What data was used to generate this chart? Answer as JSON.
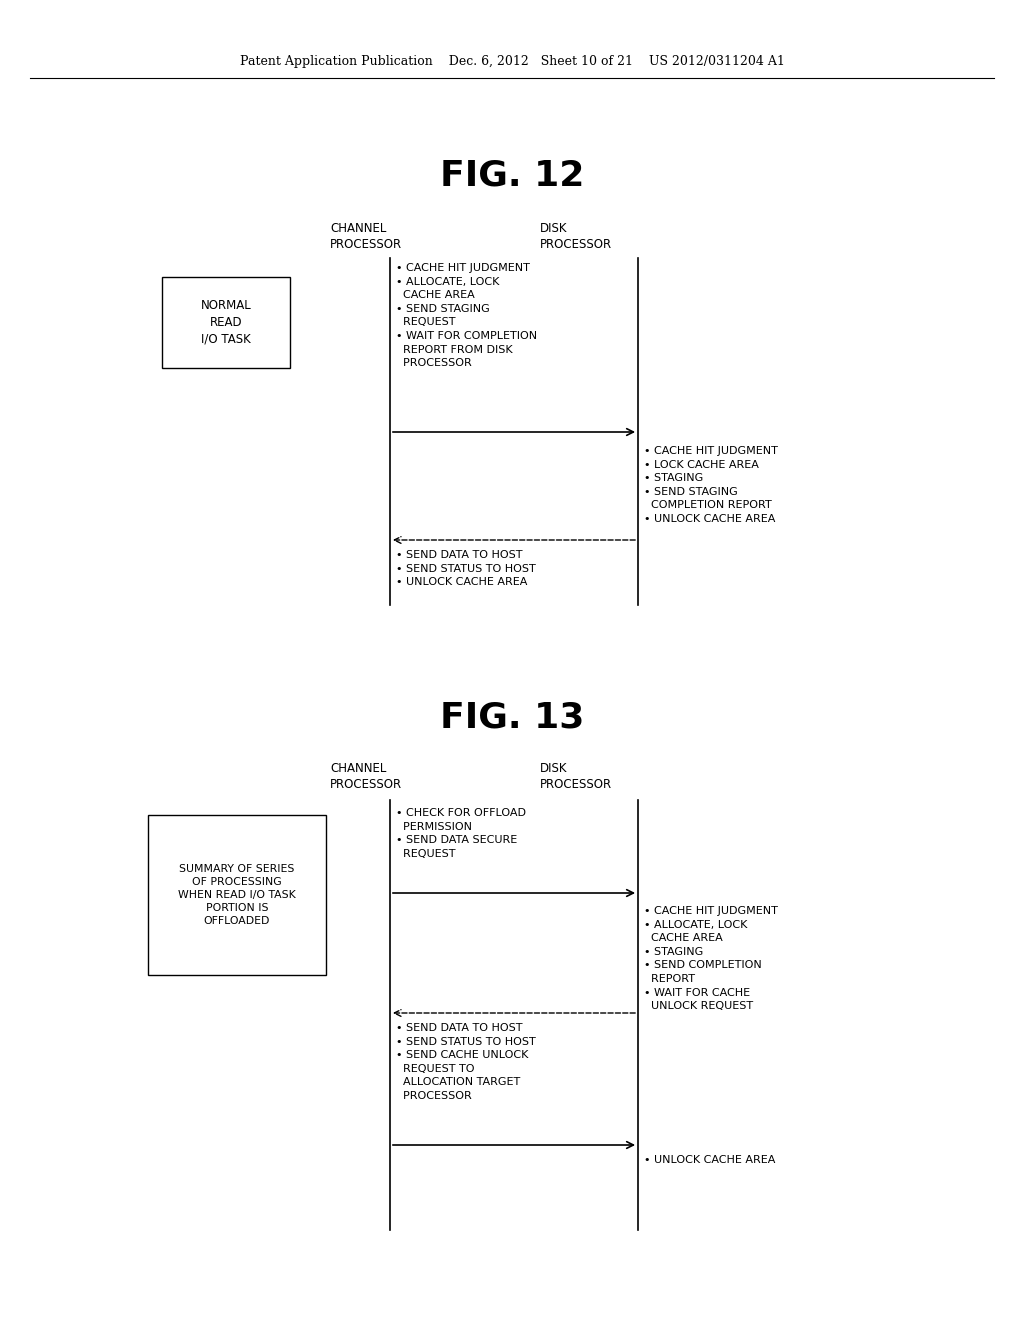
{
  "background_color": "#ffffff",
  "header_text": "Patent Application Publication    Dec. 6, 2012   Sheet 10 of 21    US 2012/0311204 A1",
  "fig12_title": "FIG. 12",
  "fig13_title": "FIG. 13",
  "fig12": {
    "channel_proc_label": "CHANNEL\nPROCESSOR",
    "disk_proc_label": "DISK\nPROCESSOR",
    "left_box_label": "NORMAL\nREAD\nI/O TASK",
    "ch_text1": "• CACHE HIT JUDGMENT\n• ALLOCATE, LOCK\n  CACHE AREA\n• SEND STAGING\n  REQUEST\n• WAIT FOR COMPLETION\n  REPORT FROM DISK\n  PROCESSOR",
    "dk_text1": "• CACHE HIT JUDGMENT\n• LOCK CACHE AREA\n• STAGING\n• SEND STAGING\n  COMPLETION REPORT\n• UNLOCK CACHE AREA",
    "ch_text2": "• SEND DATA TO HOST\n• SEND STATUS TO HOST\n• UNLOCK CACHE AREA"
  },
  "fig13": {
    "channel_proc_label": "CHANNEL\nPROCESSOR",
    "disk_proc_label": "DISK\nPROCESSOR",
    "left_box_label": "SUMMARY OF SERIES\nOF PROCESSING\nWHEN READ I/O TASK\nPORTION IS\nOFFLOADED",
    "ch_text1": "• CHECK FOR OFFLOAD\n  PERMISSION\n• SEND DATA SECURE\n  REQUEST",
    "dk_text1": "• CACHE HIT JUDGMENT\n• ALLOCATE, LOCK\n  CACHE AREA\n• STAGING\n• SEND COMPLETION\n  REPORT\n• WAIT FOR CACHE\n  UNLOCK REQUEST",
    "ch_text2": "• SEND DATA TO HOST\n• SEND STATUS TO HOST\n• SEND CACHE UNLOCK\n  REQUEST TO\n  ALLOCATION TARGET\n  PROCESSOR",
    "dk_text2": "• UNLOCK CACHE AREA"
  }
}
